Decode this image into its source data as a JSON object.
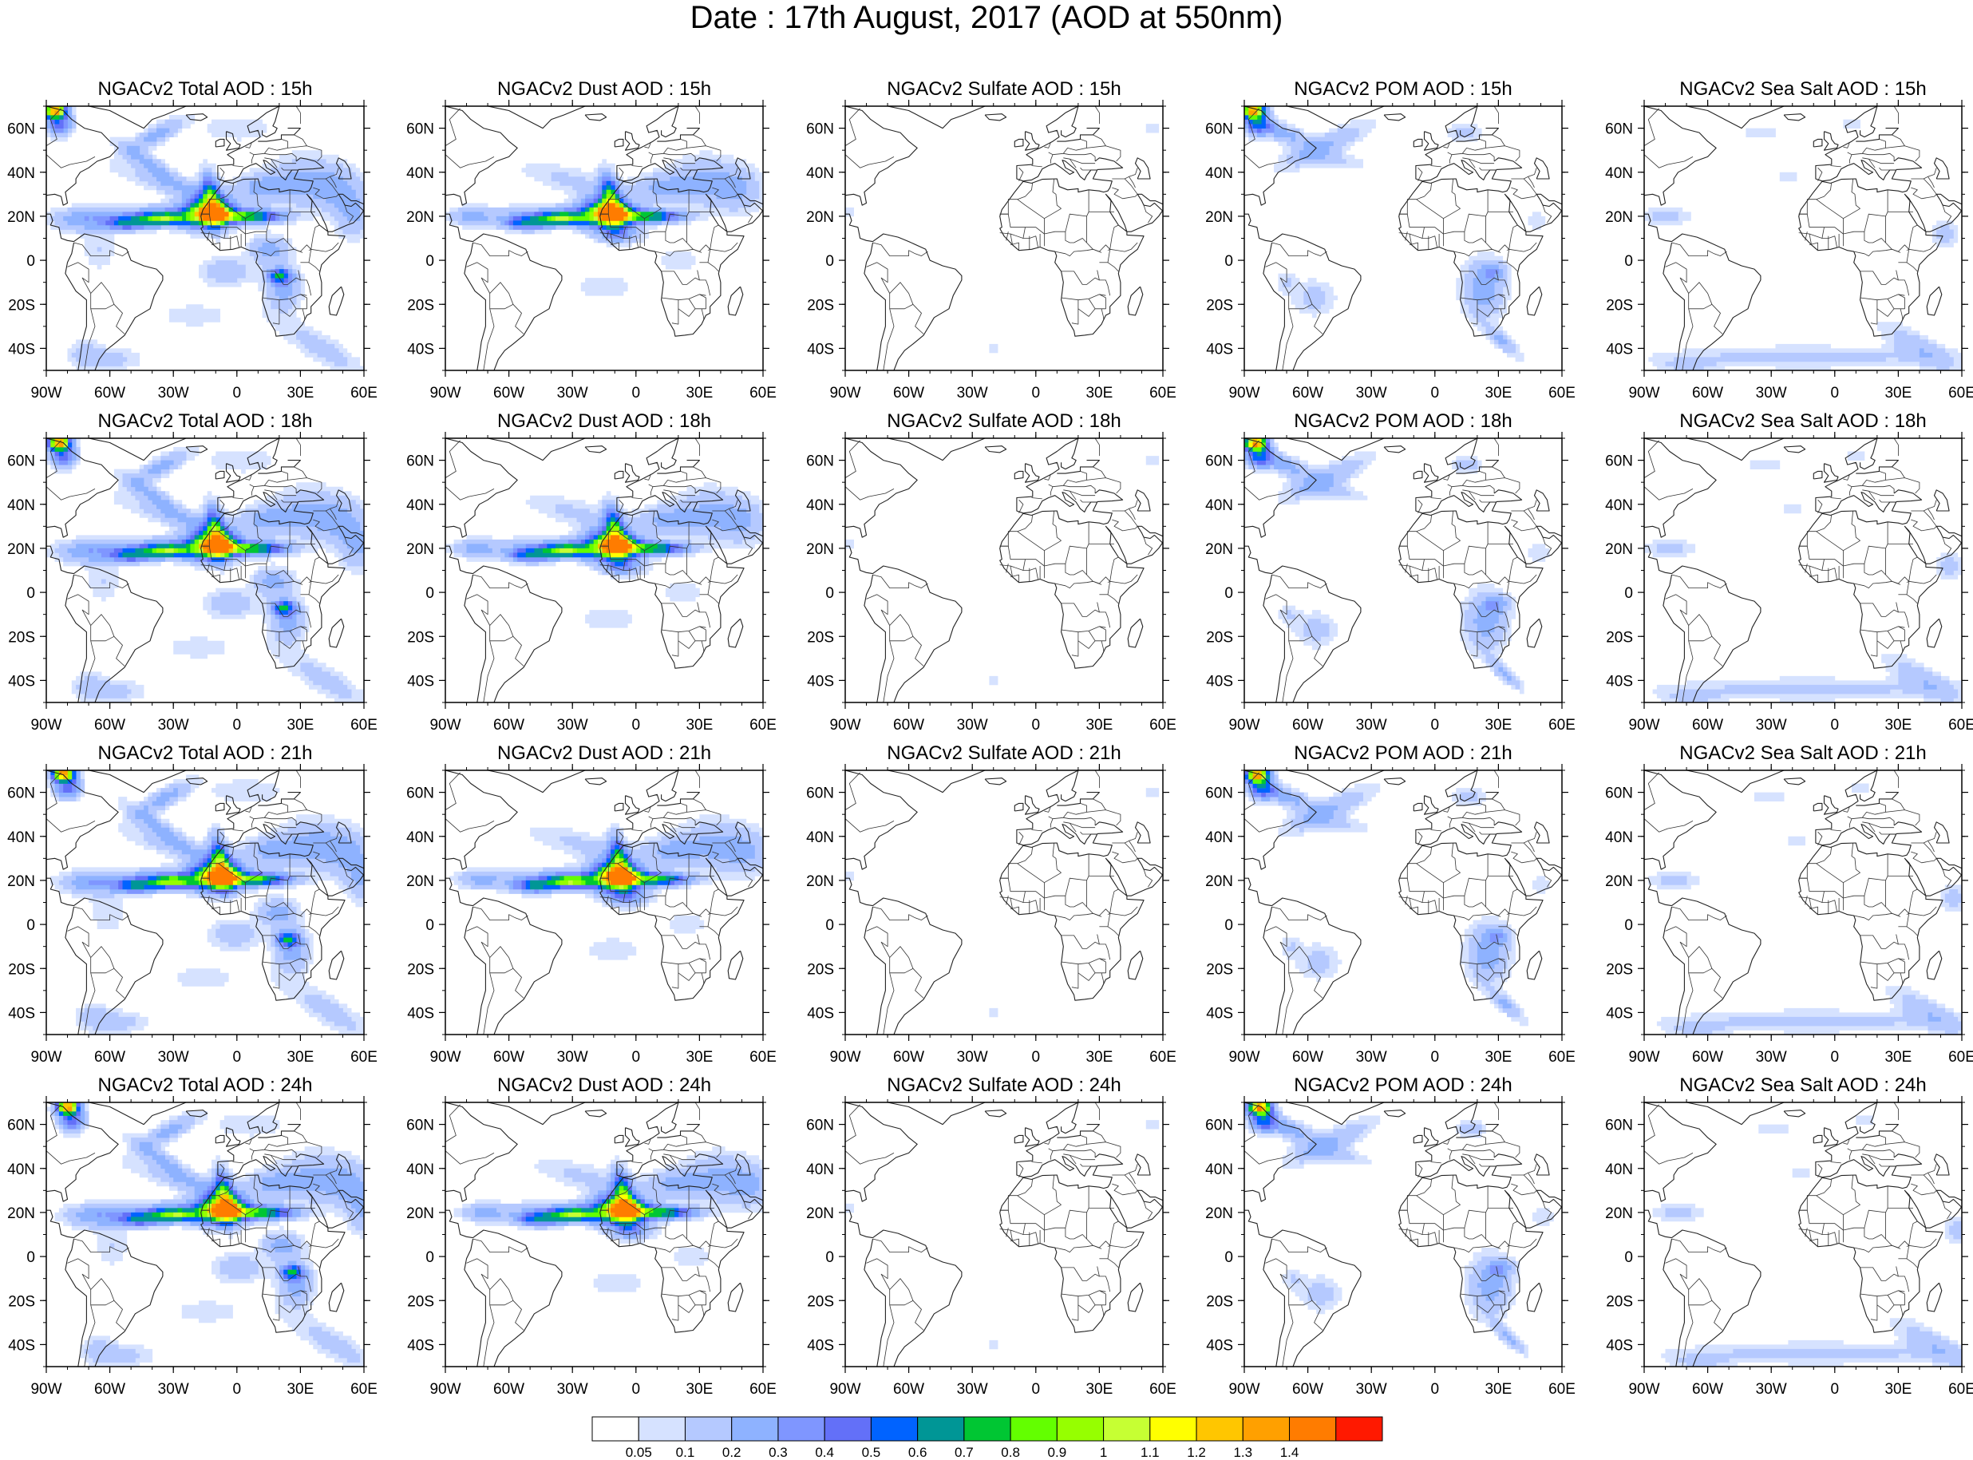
{
  "title": "Date : 17th August, 2017 (AOD at 550nm)",
  "panels": [
    {
      "title": "NGACv2 Total AOD : 15h",
      "species": "total"
    },
    {
      "title": "NGACv2 Dust AOD : 15h",
      "species": "dust"
    },
    {
      "title": "NGACv2 Sulfate AOD : 15h",
      "species": "sulfate"
    },
    {
      "title": "NGACv2 POM AOD : 15h",
      "species": "pom"
    },
    {
      "title": "NGACv2 Sea Salt AOD : 15h",
      "species": "seasalt"
    },
    {
      "title": "NGACv2 Total AOD : 18h",
      "species": "total"
    },
    {
      "title": "NGACv2 Dust AOD : 18h",
      "species": "dust"
    },
    {
      "title": "NGACv2 Sulfate AOD : 18h",
      "species": "sulfate"
    },
    {
      "title": "NGACv2 POM AOD : 18h",
      "species": "pom"
    },
    {
      "title": "NGACv2 Sea Salt AOD : 18h",
      "species": "seasalt"
    },
    {
      "title": "NGACv2 Total AOD : 21h",
      "species": "total"
    },
    {
      "title": "NGACv2 Dust AOD : 21h",
      "species": "dust"
    },
    {
      "title": "NGACv2 Sulfate AOD : 21h",
      "species": "sulfate"
    },
    {
      "title": "NGACv2 POM AOD : 21h",
      "species": "pom"
    },
    {
      "title": "NGACv2 Sea Salt AOD : 21h",
      "species": "seasalt"
    },
    {
      "title": "NGACv2 Total AOD : 24h",
      "species": "total"
    },
    {
      "title": "NGACv2 Dust AOD : 24h",
      "species": "dust"
    },
    {
      "title": "NGACv2 Sulfate AOD : 24h",
      "species": "sulfate"
    },
    {
      "title": "NGACv2 POM AOD : 24h",
      "species": "pom"
    },
    {
      "title": "NGACv2 Sea Salt  AOD : 24h",
      "species": "seasalt"
    }
  ],
  "map": {
    "lon_range": [
      -90,
      60
    ],
    "lat_range": [
      -50,
      70
    ],
    "lon_ticks": [
      -90,
      -60,
      -30,
      0,
      30,
      60
    ],
    "lon_labels": [
      "90W",
      "60W",
      "30W",
      "0",
      "30E",
      "60E"
    ],
    "lat_ticks": [
      -40,
      -20,
      0,
      20,
      40,
      60
    ],
    "lat_labels": [
      "40S",
      "20S",
      "0",
      "20N",
      "40N",
      "60N"
    ]
  },
  "colorbar": {
    "labels": [
      "0.05",
      "0.1",
      "0.2",
      "0.3",
      "0.4",
      "0.5",
      "0.6",
      "0.7",
      "0.8",
      "0.9",
      "1",
      "1.1",
      "1.2",
      "1.3",
      "1.4"
    ],
    "colors": [
      "#ffffff",
      "#d6e2ff",
      "#b5c9ff",
      "#8eb2ff",
      "#7f96ff",
      "#6370f8",
      "#0063ff",
      "#009696",
      "#00c633",
      "#63ff00",
      "#96ff00",
      "#c6ff33",
      "#ffff00",
      "#ffc600",
      "#ffa000",
      "#ff7c00",
      "#ff1900"
    ]
  }
}
